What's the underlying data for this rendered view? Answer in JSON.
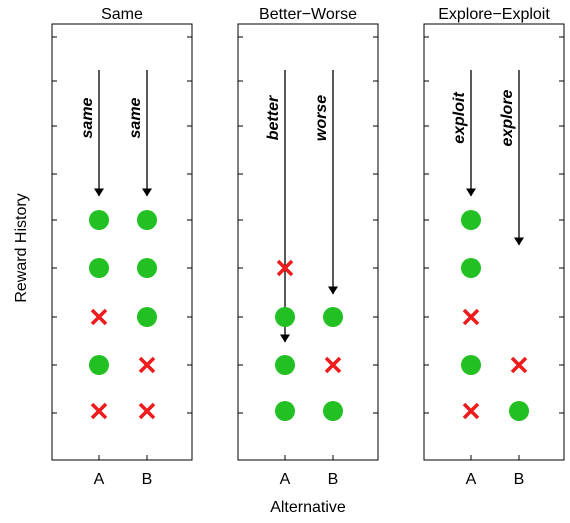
{
  "y_axis_label": "Reward History",
  "x_axis_label": "Alternative",
  "colors": {
    "success": "#22c022",
    "failure": "#ee1c1c",
    "frame": "#000000"
  },
  "panels": [
    {
      "title": "Same",
      "alternatives": [
        {
          "name": "A",
          "arrow_label": "same",
          "arrow_end_slot": 5,
          "history": [
            "success",
            "success",
            "failure",
            "success",
            "failure"
          ]
        },
        {
          "name": "B",
          "arrow_label": "same",
          "arrow_end_slot": 5,
          "history": [
            "success",
            "success",
            "success",
            "failure",
            "failure"
          ]
        }
      ]
    },
    {
      "title": "Better−Worse",
      "alternatives": [
        {
          "name": "A",
          "arrow_label": "better",
          "arrow_end_slot": 4,
          "history": [
            null,
            "failure",
            "success",
            "success",
            "success"
          ]
        },
        {
          "name": "B",
          "arrow_label": "worse",
          "arrow_end_slot": 3,
          "history": [
            null,
            null,
            "success",
            "failure",
            "success"
          ]
        }
      ]
    },
    {
      "title": "Explore−Exploit",
      "alternatives": [
        {
          "name": "A",
          "arrow_label": "exploit",
          "arrow_end_slot": 5,
          "history": [
            "success",
            "success",
            "failure",
            "success",
            "failure"
          ]
        },
        {
          "name": "B",
          "arrow_label": "explore",
          "arrow_end_slot": 2,
          "history": [
            null,
            null,
            null,
            "failure",
            "success"
          ]
        }
      ]
    }
  ]
}
